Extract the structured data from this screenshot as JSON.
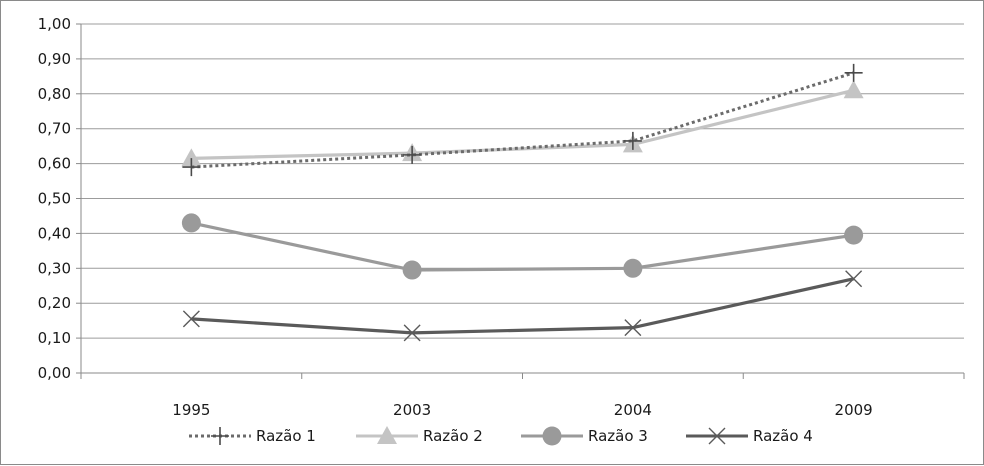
{
  "chart_data": {
    "type": "line",
    "categories": [
      "1995",
      "2003",
      "2004",
      "2009"
    ],
    "ylim": [
      0,
      1.0
    ],
    "yticks": [
      "0,00",
      "0,10",
      "0,20",
      "0,30",
      "0,40",
      "0,50",
      "0,60",
      "0,70",
      "0,80",
      "0,90",
      "1,00"
    ],
    "grid": "horizontal",
    "legend_position": "bottom",
    "series": [
      {
        "name": "Razão 1",
        "values": [
          0.59,
          0.625,
          0.665,
          0.86
        ],
        "color": "#6b6b6b",
        "style": "dotted",
        "marker": "plus"
      },
      {
        "name": "Razão 2",
        "values": [
          0.615,
          0.63,
          0.655,
          0.81
        ],
        "color": "#c4c4c4",
        "style": "solid",
        "marker": "triangle"
      },
      {
        "name": "Razão 3",
        "values": [
          0.43,
          0.295,
          0.3,
          0.395
        ],
        "color": "#9a9a9a",
        "style": "solid",
        "marker": "circle"
      },
      {
        "name": "Razão 4",
        "values": [
          0.155,
          0.115,
          0.13,
          0.27
        ],
        "color": "#5a5a5a",
        "style": "solid",
        "marker": "x"
      }
    ]
  }
}
